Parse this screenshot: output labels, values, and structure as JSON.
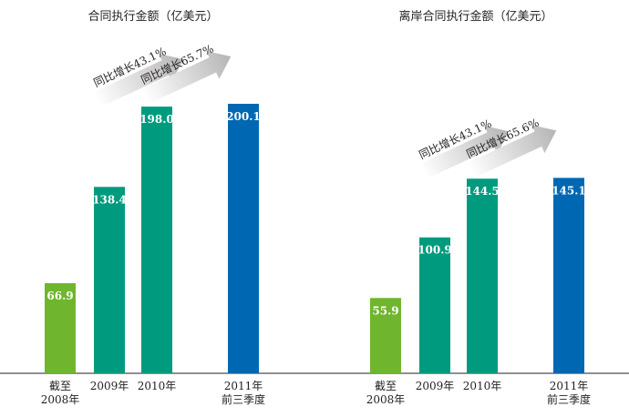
{
  "chart_data": [
    {
      "type": "bar",
      "title": "合同执行金额（亿美元）",
      "categories": [
        "截至\n2008年",
        "2009年",
        "2010年",
        "2011年\n前三季度"
      ],
      "values": [
        66.9,
        138.4,
        198.0,
        200.1
      ],
      "value_labels": [
        "66.9",
        "138.4",
        "198.0",
        "200.1"
      ],
      "bar_colors": [
        "#6fb62e",
        "#009b7e",
        "#009b7e",
        "#0068b2"
      ],
      "annotations": [
        "同比增长43.1%",
        "同比增长65.7%"
      ],
      "ylim": [
        0,
        200.1
      ],
      "grid": false
    },
    {
      "type": "bar",
      "title": "离岸合同执行金额（亿美元）",
      "categories": [
        "截至\n2008年",
        "2009年",
        "2010年",
        "2011年\n前三季度"
      ],
      "values": [
        55.9,
        100.9,
        144.5,
        145.1
      ],
      "value_labels": [
        "55.9",
        "100.9",
        "144.5",
        "145.1"
      ],
      "bar_colors": [
        "#6fb62e",
        "#009b7e",
        "#009b7e",
        "#0068b2"
      ],
      "annotations": [
        "同比增长43.1%",
        "同比增长65.6%"
      ],
      "ylim": [
        0,
        200.1
      ],
      "grid": false
    }
  ],
  "colors": {
    "arrow": "#bcbcbc",
    "baseline": "#231f20",
    "text": "#231f20"
  }
}
